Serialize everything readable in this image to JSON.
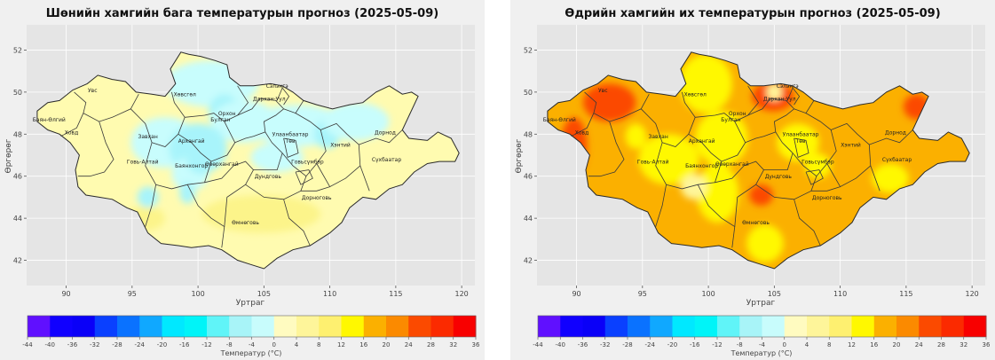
{
  "map_panels": [
    {
      "title": "Шөнийн хамгийн бага температурын прогноз (2025-05-09)",
      "fill_color": "#fffbb0",
      "patch_colors": [
        "#c8fdfd",
        "#a8f4fb",
        "#fcf48a"
      ],
      "labels": [
        "Увс",
        "Баян-Өлгий",
        "Ховд",
        "Завхан",
        "Хөвсгөл",
        "Архангай",
        "Булган",
        "Орхон",
        "Сэлэнгэ",
        "Дархан-Уул",
        "Улаанбаатар",
        "Төв",
        "Хэнтий",
        "Дорнод",
        "Сүхбаатар",
        "Баянхонгор",
        "Өвөрхангай",
        "Говь-Алтай",
        "Дундговь",
        "Говьсүмбэр",
        "Өмнөговь",
        "Дорноговь"
      ]
    },
    {
      "title": "Өдрийн хамгийн их температурын прогноз (2025-05-09)",
      "fill_color": "#fbb000",
      "patch_colors": [
        "#fff800",
        "#fb7a00",
        "#fb4a00",
        "#fef59a"
      ],
      "labels": [
        "Увс",
        "Баян-Өлгий",
        "Ховд",
        "Завхан",
        "Хөвсгөл",
        "Архангай",
        "Булган",
        "Орхон",
        "Сэлэнгэ",
        "Дархан-Уул",
        "Улаанбаатар",
        "Төв",
        "Хэнтий",
        "Дорнод",
        "Сүхбаатар",
        "Баянхонгор",
        "Өвөрхангай",
        "Говь-Алтай",
        "Дундговь",
        "Говьсүмбэр",
        "Өмнөговь",
        "Дорноговь"
      ]
    }
  ],
  "axes": {
    "xlabel": "Уртраг",
    "ylabel": "Өргөрөг",
    "xticks": [
      90,
      95,
      100,
      105,
      110,
      115,
      120
    ],
    "yticks": [
      42,
      44,
      46,
      48,
      50,
      52
    ],
    "xlim": [
      87,
      121
    ],
    "ylim": [
      40.8,
      53.2
    ]
  },
  "colorbar": {
    "label": "Температур (°C)",
    "ticks": [
      -44,
      -40,
      -36,
      -32,
      -28,
      -24,
      -20,
      -16,
      -12,
      -8,
      -4,
      0,
      4,
      8,
      12,
      16,
      20,
      24,
      28,
      32,
      36
    ],
    "colors": [
      "#6010ff",
      "#1000ff",
      "#0a00f8",
      "#0a40ff",
      "#0a72ff",
      "#10a8ff",
      "#00e8ff",
      "#00f4f8",
      "#60f4f8",
      "#a8f4f8",
      "#c8fcfc",
      "#fffbc0",
      "#fef59a",
      "#fef070",
      "#fff800",
      "#fbb000",
      "#fb8a00",
      "#fb4a00",
      "#fb2a00",
      "#f80000"
    ]
  }
}
